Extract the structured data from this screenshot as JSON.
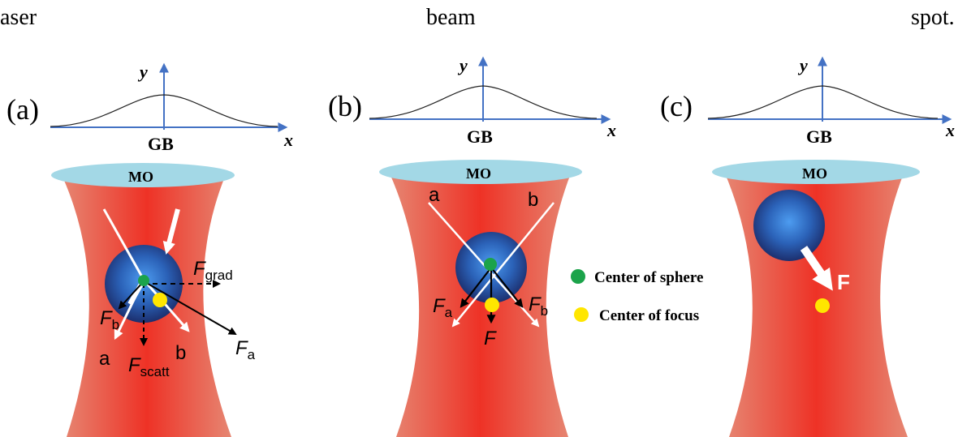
{
  "caption_fragment": {
    "w1": "aser",
    "w2": "beam",
    "w3": "spot."
  },
  "colors": {
    "beam_center": "#ee3b2b",
    "beam_edge": "#e27a68",
    "objective": "#9fd9e8",
    "sphere_center": "#2e7fd6",
    "sphere_edge": "#1f3578",
    "dot_green": "#1ba34a",
    "dot_yellow": "#ffe600",
    "axis_blue": "#4472c4"
  },
  "panels": [
    {
      "label": "(a)",
      "gb": "GB",
      "mo": "MO",
      "xaxis": "x",
      "yaxis": "y",
      "ray_a": "a",
      "ray_b": "b",
      "force_grad_main": "F",
      "force_grad_sub": "grad",
      "force_scatt_main": "F",
      "force_scatt_sub": "scatt",
      "force_a_main": "F",
      "force_a_sub": "a",
      "force_b_main": "F",
      "force_b_sub": "b"
    },
    {
      "label": "(b)",
      "gb": "GB",
      "mo": "MO",
      "xaxis": "x",
      "yaxis": "y",
      "ray_a": "a",
      "ray_b": "b",
      "force_a_main": "F",
      "force_a_sub": "a",
      "force_b_main": "F",
      "force_b_sub": "b",
      "force_total": "F"
    },
    {
      "label": "(c)",
      "gb": "GB",
      "mo": "MO",
      "xaxis": "x",
      "yaxis": "y",
      "force_label": "F"
    }
  ],
  "legend": {
    "sphere_center": "Center of sphere",
    "focus_center": "Center of focus"
  }
}
